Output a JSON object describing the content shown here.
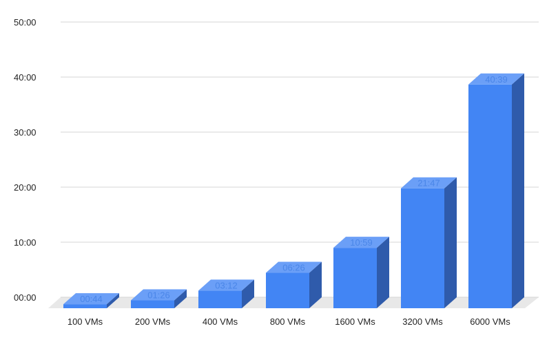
{
  "chart_data": {
    "type": "bar",
    "style": "3d",
    "categories": [
      "100 VMs",
      "200 VMs",
      "400 VMs",
      "800 VMs",
      "1600 VMs",
      "3200 VMs",
      "6000 VMs"
    ],
    "values_minutes": [
      0.7333,
      1.4333,
      3.2,
      6.4333,
      10.9833,
      21.7833,
      40.65
    ],
    "data_labels": [
      "00:44",
      "01:26",
      "03:12",
      "06:26",
      "10:59",
      "21:47",
      "40:39"
    ],
    "yticks": [
      "00:00",
      "10:00",
      "20:00",
      "30:00",
      "40:00",
      "50:00"
    ],
    "ylim": [
      0,
      50
    ],
    "grid": true,
    "title": "",
    "xlabel": "",
    "ylabel": "",
    "colors": {
      "front": "#4285f4",
      "top": "#6b9ff7",
      "side": "#2f5bab",
      "label": "#4a86e8",
      "grid": "#d6d6d6",
      "floor": "#e8e8e8"
    }
  }
}
